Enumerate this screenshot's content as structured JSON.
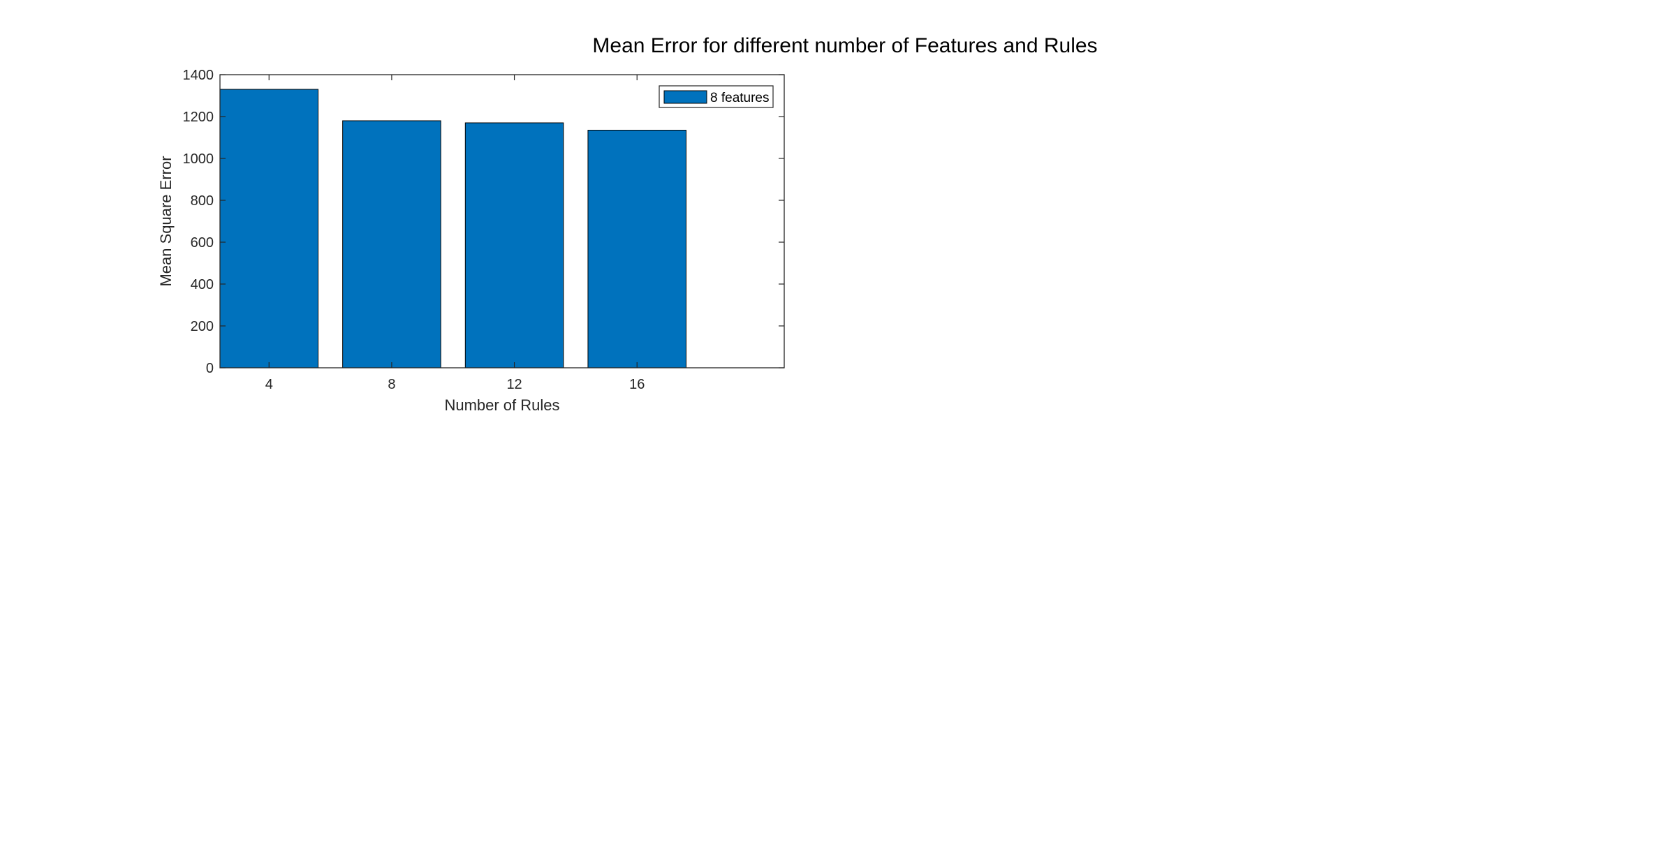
{
  "chart_data": {
    "type": "bar",
    "title": "Mean Error for different number of Features and Rules",
    "xlabel": "Number of Rules",
    "ylabel": "Mean Square Error",
    "categories": [
      "4",
      "8",
      "12",
      "16"
    ],
    "series": [
      {
        "name": "8 features",
        "values": [
          1330,
          1180,
          1170,
          1135
        ],
        "color": "#0072BD"
      }
    ],
    "xlim": [
      2.4,
      20.8
    ],
    "ylim": [
      0,
      1400
    ],
    "yticks": [
      0,
      200,
      400,
      600,
      800,
      1000,
      1200,
      1400
    ],
    "ytick_labels": [
      "0",
      "200",
      "400",
      "600",
      "800",
      "1000",
      "1200",
      "1400"
    ],
    "grid": false,
    "legend_position": "top-right",
    "colors": {
      "bar_fill": "#0072BD",
      "bar_edge": "#000000",
      "axes": "#262626",
      "background": "#ffffff"
    }
  }
}
